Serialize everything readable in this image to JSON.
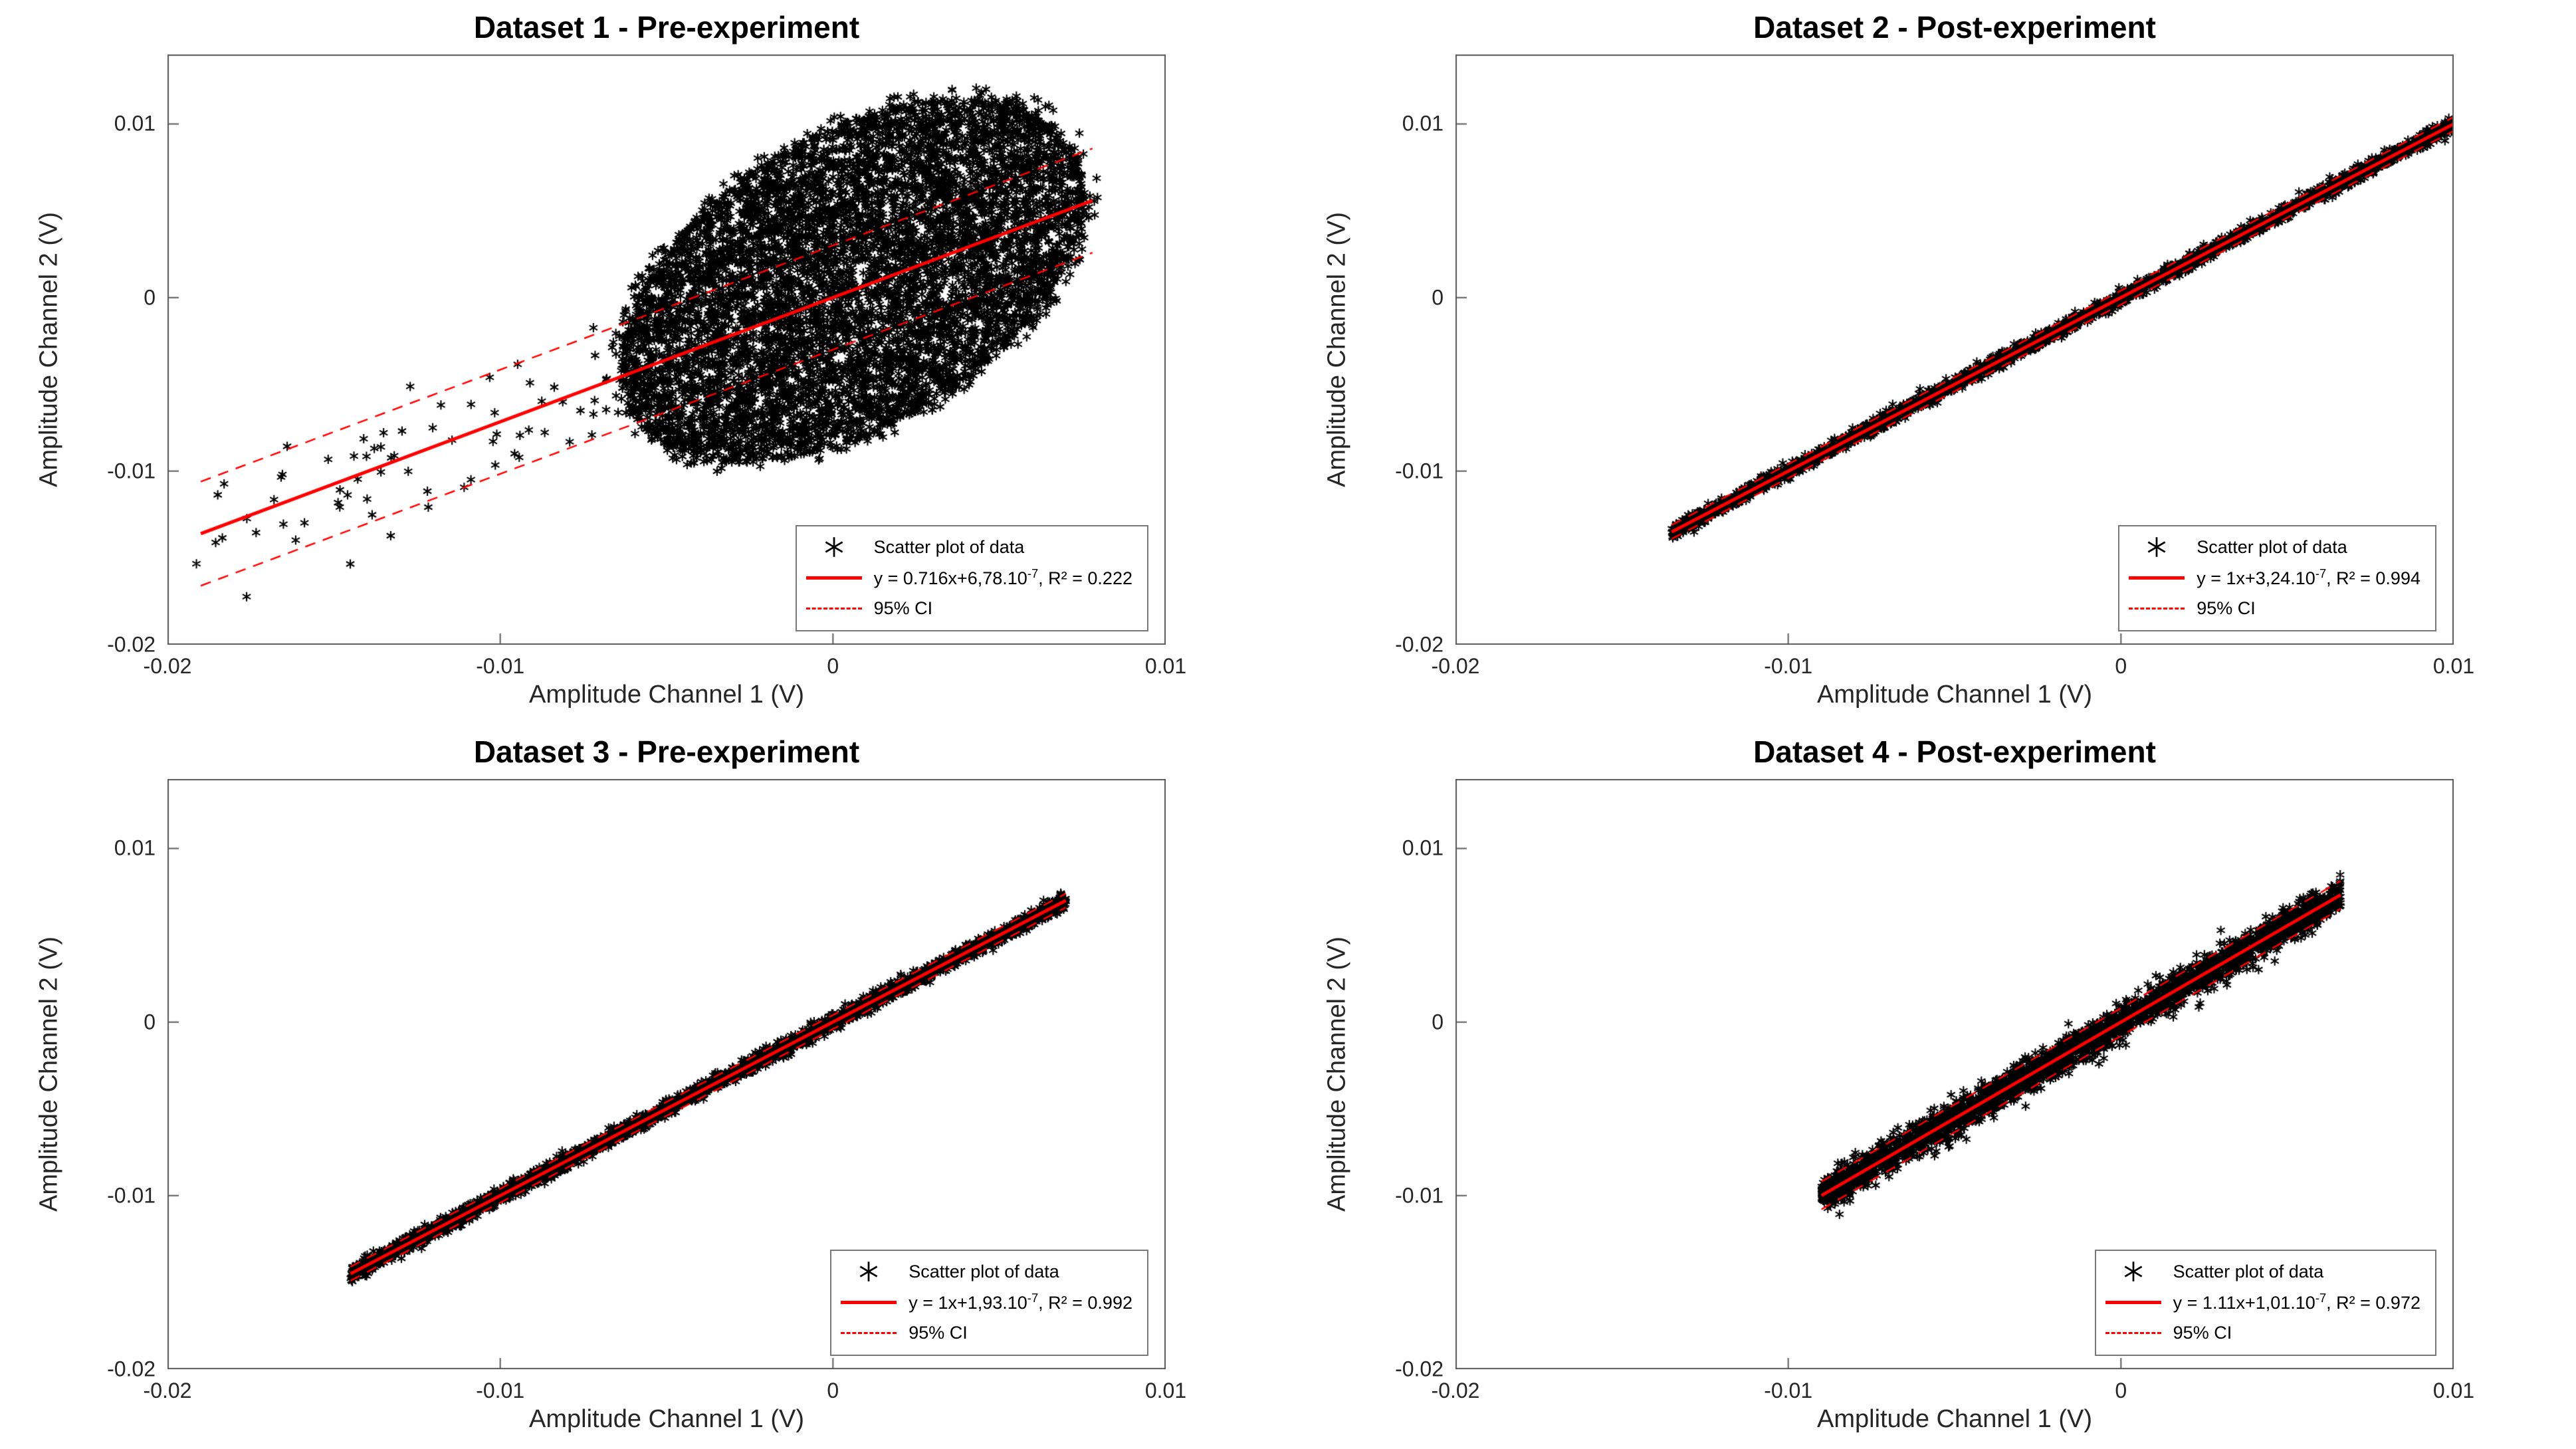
{
  "figure": {
    "background": "#ffffff",
    "layout": "2x2 grid of scatter plots with linear fits"
  },
  "colors": {
    "scatter_marker": "#000000",
    "fit_line": "#ff0000",
    "ci_line": "#ff0000",
    "axis_text": "#262626",
    "title_text": "#000000",
    "axes_box": "#5a5a5a",
    "legend_border": "#787878"
  },
  "chart_data": [
    {
      "type": "scatter",
      "title": "Dataset 1 - Pre-experiment",
      "xlabel": "Amplitude Channel 1 (V)",
      "ylabel": "Amplitude Channel 2 (V)",
      "xlim": [
        -0.02,
        0.01
      ],
      "ylim": [
        -0.02,
        0.014
      ],
      "xticks": [
        -0.02,
        -0.01,
        0,
        0.01
      ],
      "yticks": [
        -0.02,
        -0.01,
        0,
        0.01
      ],
      "xtick_labels": [
        "-0.02",
        "-0.01",
        "0",
        "0.01"
      ],
      "ytick_labels": [
        "-0.02",
        "-0.01",
        "0",
        "0.01"
      ],
      "grid": false,
      "legend_position": "lower-right-inside",
      "fit": {
        "slope": 0.716,
        "intercept": 6.78e-07,
        "r2": 0.222,
        "x_range": [
          -0.019,
          0.0078
        ],
        "ci_offset": 0.003
      },
      "scatter_model": {
        "kind": "ellipse-cloud",
        "center": [
          0.0006,
          0.001
        ],
        "semi_x": 0.007,
        "semi_y": 0.0105,
        "rho": 0.47,
        "n": 7000,
        "fringe_n": 260,
        "tail": {
          "x_range": [
            -0.0192,
            -0.004
          ],
          "noise_sigma": 0.0016,
          "n": 85
        }
      },
      "legend": {
        "scatter_label": "Scatter plot of data",
        "fit_base": "y = 0.716x+6,78.10",
        "fit_sup": "-7",
        "fit_rest": ", R² = 0.222",
        "ci_label": "95% CI"
      }
    },
    {
      "type": "scatter",
      "title": "Dataset 2 - Post-experiment",
      "xlabel": "Amplitude Channel 1 (V)",
      "ylabel": "Amplitude Channel 2 (V)",
      "xlim": [
        -0.02,
        0.01
      ],
      "ylim": [
        -0.02,
        0.014
      ],
      "xticks": [
        -0.02,
        -0.01,
        0,
        0.01
      ],
      "yticks": [
        -0.02,
        -0.01,
        0,
        0.01
      ],
      "xtick_labels": [
        "-0.02",
        "-0.01",
        "0",
        "0.01"
      ],
      "ytick_labels": [
        "-0.02",
        "-0.01",
        "0",
        "0.01"
      ],
      "grid": false,
      "legend_position": "lower-right-inside",
      "fit": {
        "slope": 1.0,
        "intercept": 3.24e-07,
        "r2": 0.994,
        "x_range": [
          -0.0135,
          0.01
        ],
        "ci_offset": 0.0004
      },
      "scatter_model": {
        "kind": "band",
        "x_range": [
          -0.0135,
          0.01
        ],
        "slope": 1.0,
        "intercept": 0,
        "noise_sigma": 0.0002,
        "n": 3200
      },
      "legend": {
        "scatter_label": "Scatter plot of data",
        "fit_base": "y = 1x+3,24.10",
        "fit_sup": "-7",
        "fit_rest": ", R² = 0.994",
        "ci_label": "95% CI"
      }
    },
    {
      "type": "scatter",
      "title": "Dataset 3 - Pre-experiment",
      "xlabel": "Amplitude Channel 1 (V)",
      "ylabel": "Amplitude Channel 2 (V)",
      "xlim": [
        -0.02,
        0.01
      ],
      "ylim": [
        -0.02,
        0.014
      ],
      "xticks": [
        -0.02,
        -0.01,
        0,
        0.01
      ],
      "yticks": [
        -0.02,
        -0.01,
        0,
        0.01
      ],
      "xtick_labels": [
        "-0.02",
        "-0.01",
        "0",
        "0.01"
      ],
      "ytick_labels": [
        "-0.02",
        "-0.01",
        "0",
        "0.01"
      ],
      "grid": false,
      "legend_position": "lower-right-inside",
      "fit": {
        "slope": 1.0,
        "intercept": 1.93e-07,
        "r2": 0.992,
        "x_range": [
          -0.0145,
          0.007
        ],
        "ci_offset": 0.0004
      },
      "scatter_model": {
        "kind": "band",
        "x_range": [
          -0.0145,
          0.007
        ],
        "slope": 1.0,
        "intercept": 0,
        "noise_sigma": 0.00022,
        "n": 3200
      },
      "legend": {
        "scatter_label": "Scatter plot of data",
        "fit_base": "y = 1x+1,93.10",
        "fit_sup": "-7",
        "fit_rest": ", R² = 0.992",
        "ci_label": "95% CI"
      }
    },
    {
      "type": "scatter",
      "title": "Dataset 4 - Post-experiment",
      "xlabel": "Amplitude Channel 1 (V)",
      "ylabel": "Amplitude Channel 2 (V)",
      "xlim": [
        -0.02,
        0.01
      ],
      "ylim": [
        -0.02,
        0.014
      ],
      "xticks": [
        -0.02,
        -0.01,
        0,
        0.01
      ],
      "yticks": [
        -0.02,
        -0.01,
        0,
        0.01
      ],
      "xtick_labels": [
        "-0.02",
        "-0.01",
        "0",
        "0.01"
      ],
      "ytick_labels": [
        "-0.02",
        "-0.01",
        "0",
        "0.01"
      ],
      "grid": false,
      "legend_position": "lower-right-inside",
      "fit": {
        "slope": 1.11,
        "intercept": 1.01e-07,
        "r2": 0.972,
        "x_range": [
          -0.009,
          0.0066
        ],
        "ci_offset": 0.0008
      },
      "scatter_model": {
        "kind": "band",
        "x_range": [
          -0.009,
          0.0066
        ],
        "slope": 1.11,
        "intercept": 0,
        "noise_sigma": 0.0005,
        "n": 2800
      },
      "legend": {
        "scatter_label": "Scatter plot of data",
        "fit_base": "y = 1.11x+1,01.10",
        "fit_sup": "-7",
        "fit_rest": ", R² = 0.972",
        "ci_label": "95% CI"
      }
    }
  ]
}
